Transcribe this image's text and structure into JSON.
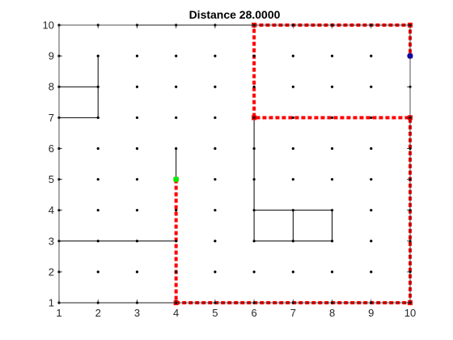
{
  "chart_data": {
    "type": "line",
    "title": "Distance 28.0000",
    "xlabel": "",
    "ylabel": "",
    "xlim": [
      1,
      10
    ],
    "ylim": [
      1,
      10
    ],
    "grid": false,
    "x_ticks": [
      "1",
      "2",
      "3",
      "4",
      "5",
      "6",
      "7",
      "8",
      "9",
      "10"
    ],
    "y_ticks": [
      "1",
      "2",
      "3",
      "4",
      "5",
      "6",
      "7",
      "8",
      "9",
      "10"
    ],
    "colors": {
      "path": "#ff0000",
      "edges": "#000000",
      "nodes": "#000000",
      "start": "#00ee00",
      "end": "#0000cc"
    },
    "start_point": [
      4,
      5
    ],
    "end_point": [
      10,
      9
    ],
    "edges": [
      [
        [
          3,
          10
        ],
        [
          6,
          10
        ]
      ],
      [
        [
          2,
          9
        ],
        [
          2,
          7
        ]
      ],
      [
        [
          1,
          8
        ],
        [
          2,
          8
        ]
      ],
      [
        [
          1,
          7
        ],
        [
          2,
          7
        ]
      ],
      [
        [
          1,
          3
        ],
        [
          4,
          3
        ]
      ],
      [
        [
          1,
          1
        ],
        [
          4,
          1
        ]
      ],
      [
        [
          4,
          6
        ],
        [
          4,
          5
        ]
      ],
      [
        [
          6,
          7
        ],
        [
          6,
          3
        ]
      ],
      [
        [
          6,
          4
        ],
        [
          8,
          4
        ]
      ],
      [
        [
          6,
          3
        ],
        [
          8,
          3
        ]
      ],
      [
        [
          7,
          4
        ],
        [
          7,
          3
        ]
      ],
      [
        [
          8,
          4
        ],
        [
          8,
          3
        ]
      ]
    ],
    "path": [
      [
        4,
        5
      ],
      [
        4,
        1
      ],
      [
        10,
        1
      ],
      [
        10,
        7
      ],
      [
        6,
        7
      ],
      [
        6,
        10
      ],
      [
        10,
        10
      ],
      [
        10,
        9
      ]
    ]
  }
}
